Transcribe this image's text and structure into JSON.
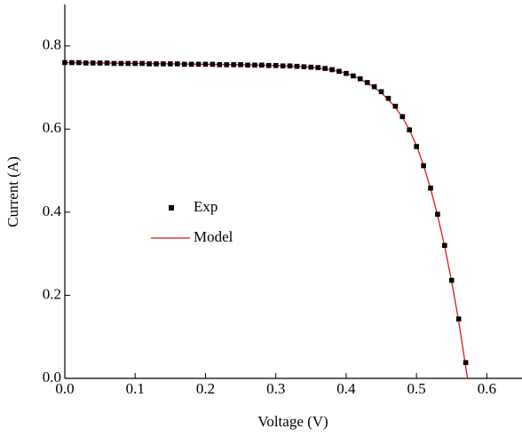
{
  "chart_data": {
    "type": "scatter-line",
    "x_label": "Voltage (V)",
    "y_label": "Current (A)",
    "xlim": [
      0,
      0.65
    ],
    "ylim": [
      0,
      0.9
    ],
    "xticks": [
      {
        "value": 0,
        "label": "0.0"
      },
      0.1,
      0.2,
      0.3,
      0.4,
      0.5,
      0.6
    ],
    "yticks": [
      {
        "value": 0,
        "label": "0.0"
      },
      0.2,
      0.4,
      0.6,
      0.8
    ],
    "series": [
      {
        "name": "Exp",
        "kind": "scatter",
        "color": "#000000",
        "x": [
          0,
          0.01,
          0.02,
          0.03,
          0.04,
          0.05,
          0.06,
          0.07,
          0.08,
          0.09,
          0.1,
          0.11,
          0.12,
          0.13,
          0.14,
          0.15,
          0.16,
          0.17,
          0.18,
          0.19,
          0.2,
          0.21,
          0.22,
          0.23,
          0.24,
          0.25,
          0.26,
          0.27,
          0.28,
          0.29,
          0.3,
          0.31,
          0.32,
          0.33,
          0.34,
          0.35,
          0.36,
          0.37,
          0.38,
          0.39,
          0.4,
          0.41,
          0.42,
          0.43,
          0.44,
          0.45,
          0.46,
          0.47,
          0.48,
          0.49,
          0.5,
          0.51,
          0.52,
          0.53,
          0.54,
          0.55,
          0.56,
          0.57
        ],
        "values": [
          0.76,
          0.76,
          0.76,
          0.759,
          0.759,
          0.759,
          0.759,
          0.758,
          0.758,
          0.758,
          0.758,
          0.758,
          0.757,
          0.757,
          0.757,
          0.757,
          0.757,
          0.756,
          0.756,
          0.756,
          0.756,
          0.756,
          0.755,
          0.755,
          0.755,
          0.755,
          0.754,
          0.754,
          0.754,
          0.753,
          0.753,
          0.752,
          0.752,
          0.751,
          0.75,
          0.749,
          0.748,
          0.746,
          0.743,
          0.739,
          0.734,
          0.728,
          0.721,
          0.712,
          0.702,
          0.69,
          0.674,
          0.655,
          0.63,
          0.598,
          0.558,
          0.512,
          0.458,
          0.395,
          0.32,
          0.236,
          0.143,
          0.038
        ]
      },
      {
        "name": "Model",
        "kind": "line",
        "color": "#e0141e",
        "x": [
          0,
          0.05,
          0.1,
          0.15,
          0.2,
          0.25,
          0.3,
          0.33,
          0.35,
          0.37,
          0.39,
          0.4,
          0.41,
          0.42,
          0.43,
          0.44,
          0.45,
          0.46,
          0.47,
          0.48,
          0.49,
          0.5,
          0.51,
          0.52,
          0.53,
          0.54,
          0.55,
          0.56,
          0.5725
        ],
        "values": [
          0.76,
          0.759,
          0.758,
          0.757,
          0.756,
          0.755,
          0.753,
          0.751,
          0.749,
          0.745,
          0.739,
          0.734,
          0.728,
          0.72,
          0.711,
          0.7,
          0.687,
          0.671,
          0.652,
          0.628,
          0.598,
          0.56,
          0.513,
          0.457,
          0.392,
          0.318,
          0.233,
          0.138,
          0
        ]
      }
    ]
  }
}
